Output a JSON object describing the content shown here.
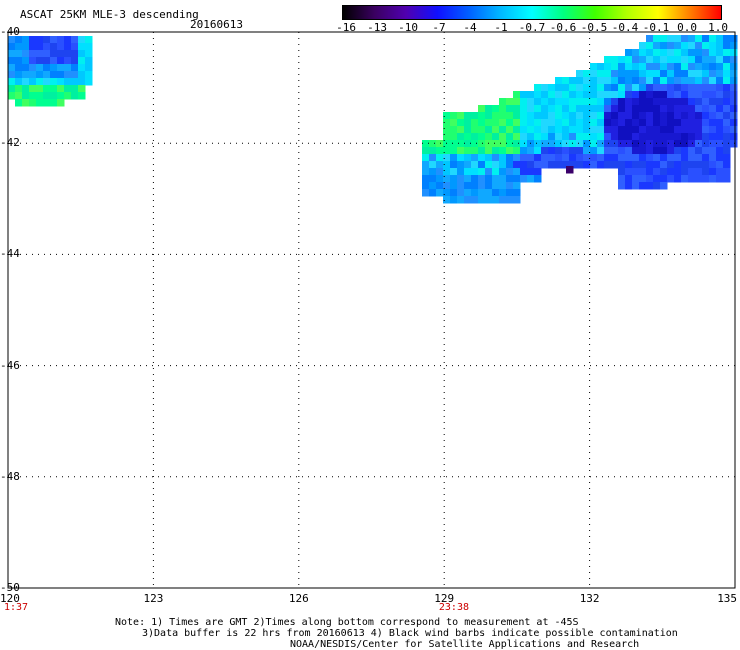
{
  "header": {
    "title": "ASCAT 25KM MLE-3 descending",
    "date": "20160613"
  },
  "colorbar": {
    "labels": [
      "-16",
      "-13",
      "-10",
      "-7",
      "-4",
      "-1",
      "-0.7",
      "-0.6",
      "-0.5",
      "-0.4",
      "-0.1",
      "0.0",
      "1.0"
    ],
    "colors": [
      "#000000",
      "#3a0060",
      "#5000b0",
      "#1010ff",
      "#0060ff",
      "#00b8ff",
      "#00ffff",
      "#00ff80",
      "#40ff00",
      "#b0ff00",
      "#ffff00",
      "#ff8000",
      "#ff0000"
    ]
  },
  "map": {
    "lon_range": [
      120,
      135
    ],
    "lat_range": [
      -50,
      -40
    ],
    "lat_labels": [
      "-40",
      "-42",
      "-44",
      "-46",
      "-48",
      "-50"
    ],
    "lon_labels": [
      "120",
      "123",
      "126",
      "129",
      "132",
      "135"
    ],
    "pass_times": [
      {
        "lon": 120,
        "label": "1:37"
      },
      {
        "lon": 129.2,
        "label": "23:38"
      }
    ]
  },
  "notes": {
    "line1": "Note: 1) Times are GMT 2)Times along bottom correspond to measurement at -45S",
    "line2": "3)Data buffer is 22 hrs from 20160613 4) Black wind barbs indicate possible contamination",
    "line3": "NOAA/NESDIS/Center for Satellite Applications and Research"
  }
}
